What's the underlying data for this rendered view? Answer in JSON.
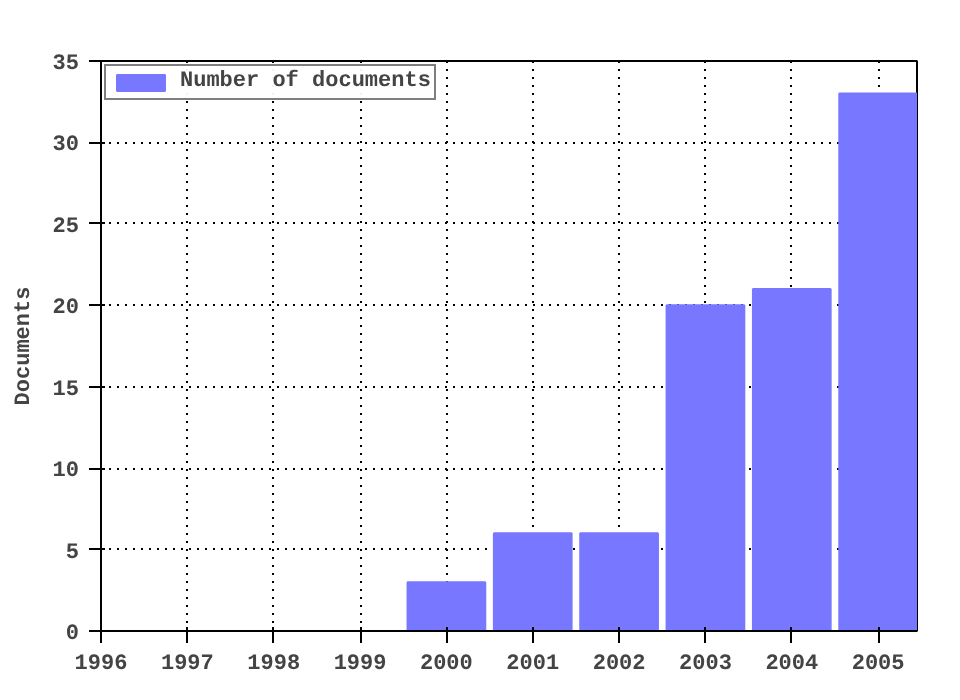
{
  "chart_data": {
    "type": "bar",
    "ylabel": "Documents",
    "x": [
      1996,
      1997,
      1998,
      1999,
      2000,
      2001,
      2002,
      2003,
      2004,
      2005
    ],
    "series": [
      {
        "name": "Number of documents",
        "color": "#7777ff",
        "values": [
          0,
          0,
          0,
          0,
          3,
          6,
          6,
          20,
          21,
          33
        ]
      }
    ],
    "xlim": [
      1996,
      2005.45
    ],
    "xticks": [
      1996,
      1997,
      1998,
      1999,
      2000,
      2001,
      2002,
      2003,
      2004,
      2005
    ],
    "ylim": [
      0,
      35
    ],
    "yticks": [
      0,
      5,
      10,
      15,
      20,
      25,
      30,
      35
    ],
    "grid": true,
    "legend": "top left"
  }
}
